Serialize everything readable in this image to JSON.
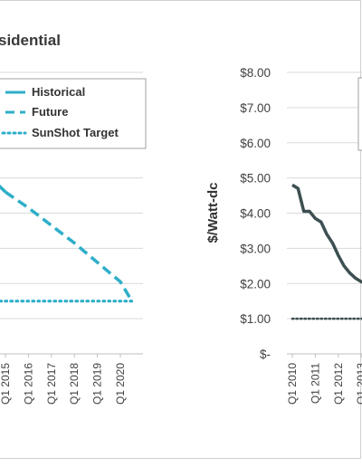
{
  "chart_data": [
    {
      "type": "line",
      "title": "sidential",
      "x_tick_labels": [
        "Q1 2015",
        "Q1 2016",
        "Q1 2017",
        "Q1 2018",
        "Q1 2019",
        "Q1 2020"
      ],
      "legend": [
        "Historical",
        "Future",
        "SunShot Target"
      ],
      "series": [
        {
          "name": "Historical",
          "x": [
            "Q1 2015"
          ],
          "values": [
            4.6
          ]
        },
        {
          "name": "Future",
          "x": [
            "Q1 2015",
            "Q1 2016",
            "Q1 2017",
            "Q1 2018",
            "Q1 2019",
            "Q1 2020",
            "Q3 2020"
          ],
          "values": [
            4.6,
            4.15,
            3.65,
            3.15,
            2.6,
            2.05,
            1.5
          ]
        },
        {
          "name": "SunShot Target",
          "x": [
            "Q1 2015",
            "Q3 2020"
          ],
          "values": [
            1.5,
            1.5
          ]
        }
      ],
      "grid": true,
      "legend_placement": "top-left"
    },
    {
      "type": "line",
      "title": "",
      "ylabel": "$/Watt-dc",
      "y_tick_labels": [
        "$-",
        "$1.00",
        "$2.00",
        "$3.00",
        "$4.00",
        "$5.00",
        "$6.00",
        "$7.00",
        "$8.00"
      ],
      "ylim": [
        0,
        8
      ],
      "x_tick_labels": [
        "Q1 2010",
        "Q1 2011",
        "Q1 2012",
        "Q1 2013"
      ],
      "series": [
        {
          "name": "Historical",
          "x": [
            "Q1 2010",
            "Q2 2010",
            "Q3 2010",
            "Q4 2010",
            "Q1 2011",
            "Q2 2011",
            "Q3 2011",
            "Q4 2011",
            "Q1 2012",
            "Q2 2012",
            "Q3 2012",
            "Q4 2012",
            "Q1 2013",
            "Q2 2013"
          ],
          "values": [
            4.8,
            4.7,
            4.05,
            4.05,
            3.85,
            3.75,
            3.4,
            3.15,
            2.8,
            2.5,
            2.3,
            2.15,
            2.05,
            2.0
          ]
        },
        {
          "name": "SunShot Target",
          "x": [
            "Q1 2010",
            "Q2 2013"
          ],
          "values": [
            1.0,
            1.0
          ]
        }
      ],
      "grid": true,
      "colors": {
        "historical": "#3d4f51",
        "target": "#3d4f51"
      }
    }
  ],
  "colors": {
    "future": "#2eaec8",
    "grid": "#d9d9d9"
  }
}
